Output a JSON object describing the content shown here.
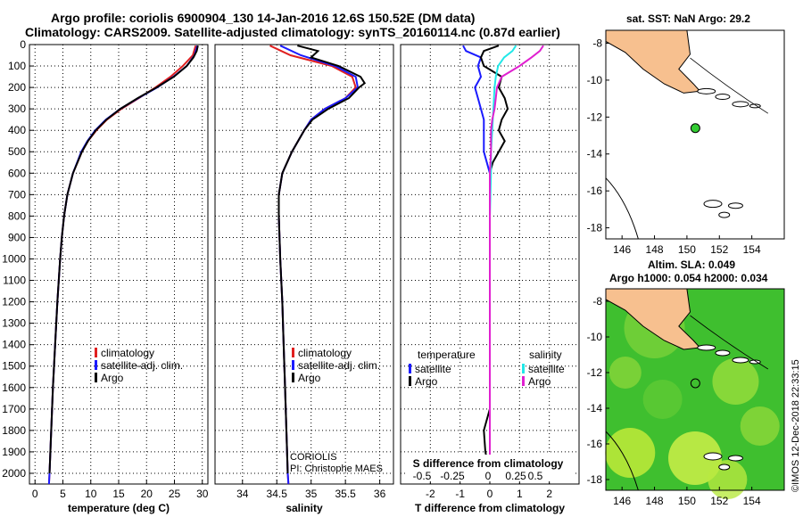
{
  "header": {
    "title_line1": "Argo profile: coriolis 6900904_130 14-Jan-2016 12.6S 150.52E (DM data)",
    "title_line2": "Climatology: CARS2009. Satellite-adjusted climatology: synTS_20160114.nc (0.87d earlier)"
  },
  "right_panel": {
    "sst_label": "sat. SST: NaN Argo: 29.2",
    "sla_label": "Altim. SLA: 0.049",
    "h_label": "Argo h1000: 0.054 h2000: 0.034",
    "imos_stamp": "©IMOS 12-Dec-2018 22:33:15",
    "float_position": {
      "lon": 150.52,
      "lat": -12.6
    },
    "lon_ticks": [
      "146",
      "148",
      "150",
      "152",
      "154"
    ],
    "lat_ticks": [
      "-8",
      "-10",
      "-12",
      "-14",
      "-16",
      "-18"
    ]
  },
  "colors": {
    "climatology": "#e02020",
    "satellite": "#1a1aff",
    "argo": "#000000",
    "sat_salinity": "#22e8e8",
    "argo_salinity": "#e020d0",
    "land": "#f7c08f",
    "ocean_green": "#3fbf2f",
    "marker": "#33cc33"
  },
  "chart_data": [
    {
      "type": "line",
      "name": "temperature",
      "xlabel": "temperature (deg C)",
      "ylabel": "",
      "xlim": [
        -1,
        31
      ],
      "ylim": [
        2050,
        0
      ],
      "xticks": [
        "0",
        "5",
        "10",
        "15",
        "20",
        "25",
        "30"
      ],
      "yticks": [
        "0",
        "100",
        "200",
        "300",
        "400",
        "500",
        "600",
        "700",
        "800",
        "900",
        "1000",
        "1100",
        "1200",
        "1300",
        "1400",
        "1500",
        "1600",
        "1700",
        "1800",
        "1900",
        "2000"
      ],
      "legend": [
        "climatology",
        "satellite-adj. clim.",
        "Argo"
      ],
      "series": [
        {
          "name": "climatology",
          "depth": [
            5,
            50,
            100,
            150,
            200,
            250,
            300,
            350,
            400,
            450,
            500,
            600,
            700,
            800,
            900,
            1000,
            1200,
            1400,
            1600,
            1800,
            2000,
            2050
          ],
          "values": [
            28.8,
            28.3,
            26.5,
            24.3,
            21.6,
            18.6,
            15.5,
            12.9,
            11.0,
            9.5,
            8.4,
            6.8,
            5.8,
            5.2,
            4.8,
            4.5,
            4.0,
            3.6,
            3.2,
            2.9,
            2.6,
            2.5
          ]
        },
        {
          "name": "satellite-adj. clim.",
          "depth": [
            5,
            50,
            100,
            150,
            200,
            250,
            300,
            350,
            400,
            450,
            500,
            600,
            700,
            800,
            900,
            1000,
            1200,
            1400,
            1600,
            1800,
            2000,
            2050
          ],
          "values": [
            29.1,
            28.6,
            27.2,
            24.8,
            21.9,
            18.5,
            15.3,
            12.7,
            10.8,
            9.4,
            8.3,
            6.8,
            5.8,
            5.2,
            4.8,
            4.5,
            4.0,
            3.6,
            3.2,
            2.9,
            2.6,
            2.5
          ]
        },
        {
          "name": "Argo",
          "depth": [
            5,
            30,
            60,
            100,
            150,
            200,
            250,
            300,
            350,
            400,
            450,
            500,
            600,
            700,
            800,
            900,
            1000,
            1200,
            1400,
            1600,
            1800,
            2000
          ],
          "values": [
            29.2,
            29.0,
            28.4,
            27.2,
            24.9,
            21.8,
            18.4,
            15.3,
            12.8,
            10.9,
            9.5,
            8.4,
            6.8,
            5.8,
            5.2,
            4.8,
            4.5,
            4.0,
            3.6,
            3.2,
            2.9,
            2.6
          ]
        }
      ]
    },
    {
      "type": "line",
      "name": "salinity",
      "xlabel": "salinity",
      "ylabel": "",
      "xlim": [
        33.6,
        36.2
      ],
      "ylim": [
        2050,
        0
      ],
      "xticks": [
        "34",
        "34.5",
        "35",
        "35.5",
        "36"
      ],
      "legend": [
        "climatology",
        "satellite-adj. clim.",
        "Argo"
      ],
      "annotation": [
        "CORIOLIS",
        "PI: Christophe MAES"
      ],
      "series": [
        {
          "name": "climatology",
          "depth": [
            5,
            50,
            100,
            150,
            200,
            250,
            300,
            350,
            400,
            500,
            600,
            700,
            800,
            900,
            1000,
            1200,
            1400,
            1600,
            1800,
            2000,
            2050
          ],
          "values": [
            34.4,
            34.7,
            35.3,
            35.6,
            35.65,
            35.5,
            35.2,
            35.0,
            34.9,
            34.72,
            34.58,
            34.53,
            34.53,
            34.54,
            34.55,
            34.58,
            34.6,
            34.62,
            34.64,
            34.66,
            34.67
          ]
        },
        {
          "name": "satellite-adj. clim.",
          "depth": [
            5,
            50,
            100,
            150,
            200,
            250,
            300,
            350,
            400,
            500,
            600,
            700,
            800,
            900,
            1000,
            1200,
            1400,
            1600,
            1800,
            2000,
            2050
          ],
          "values": [
            34.55,
            34.85,
            35.35,
            35.65,
            35.68,
            35.5,
            35.2,
            35.0,
            34.9,
            34.72,
            34.58,
            34.53,
            34.53,
            34.54,
            34.55,
            34.58,
            34.6,
            34.62,
            34.64,
            34.66,
            34.67
          ]
        },
        {
          "name": "Argo",
          "depth": [
            5,
            30,
            60,
            100,
            150,
            180,
            200,
            250,
            300,
            350,
            400,
            500,
            600,
            700,
            800,
            900,
            1000,
            1200,
            1400,
            1600,
            1800,
            2000
          ],
          "values": [
            34.8,
            35.1,
            35.0,
            35.4,
            35.72,
            35.78,
            35.7,
            35.55,
            35.25,
            35.02,
            34.9,
            34.72,
            34.58,
            34.53,
            34.53,
            34.54,
            34.55,
            34.58,
            34.6,
            34.62,
            34.64,
            34.66
          ]
        }
      ]
    },
    {
      "type": "line",
      "name": "difference",
      "xlabel": "T difference from climatology",
      "xlabel_top": "S difference from climatology",
      "xlim": [
        -3,
        3
      ],
      "ylim": [
        2050,
        0
      ],
      "xticks": [
        "-2",
        "-1",
        "0",
        "1",
        "2"
      ],
      "xticks_top": [
        "-0.5",
        "-0.25",
        "0",
        "0.25",
        "0.5"
      ],
      "legend_left_title": "temperature",
      "legend_right_title": "salinity",
      "legend_left": [
        "satellite",
        "Argo"
      ],
      "legend_right": [
        "satellite",
        "Argo"
      ],
      "series": [
        {
          "name": "T satellite",
          "depth": [
            5,
            30,
            60,
            100,
            150,
            200,
            250,
            300,
            350,
            400,
            500,
            600,
            700,
            800,
            1000,
            1500,
            2000
          ],
          "values": [
            -0.9,
            -0.8,
            -0.3,
            -0.4,
            -0.3,
            -0.5,
            -0.4,
            -0.3,
            -0.2,
            -0.2,
            -0.2,
            0,
            0,
            0,
            0,
            0,
            0
          ]
        },
        {
          "name": "T Argo",
          "depth": [
            5,
            30,
            60,
            100,
            150,
            200,
            250,
            300,
            350,
            400,
            450,
            500,
            550,
            600,
            700,
            800,
            1000,
            1500,
            1700,
            1800,
            1900,
            2000
          ],
          "values": [
            0.3,
            -0.2,
            -0.3,
            -0.2,
            0.4,
            0.3,
            0.5,
            0.6,
            0.4,
            0.3,
            0.5,
            0.3,
            0.1,
            0,
            0,
            0,
            0,
            0,
            0,
            -0.2,
            -0.15,
            0
          ]
        },
        {
          "name": "S satellite",
          "depth": [
            5,
            30,
            60,
            100,
            150,
            200,
            300,
            400,
            500,
            600,
            800,
            1000,
            1500,
            2000
          ],
          "values": [
            0.22,
            0.19,
            0.12,
            0.07,
            0.05,
            0.04,
            0.03,
            0.02,
            0.01,
            0.01,
            0,
            0,
            0,
            0
          ]
        },
        {
          "name": "S Argo",
          "depth": [
            5,
            30,
            60,
            100,
            150,
            200,
            250,
            300,
            350,
            400,
            500,
            600,
            800,
            1000,
            1500,
            2000
          ],
          "values": [
            0.45,
            0.42,
            0.35,
            0.25,
            0.1,
            0.06,
            0.05,
            0.04,
            0.02,
            0.01,
            0.01,
            0,
            0,
            0,
            0,
            0
          ]
        }
      ]
    }
  ]
}
